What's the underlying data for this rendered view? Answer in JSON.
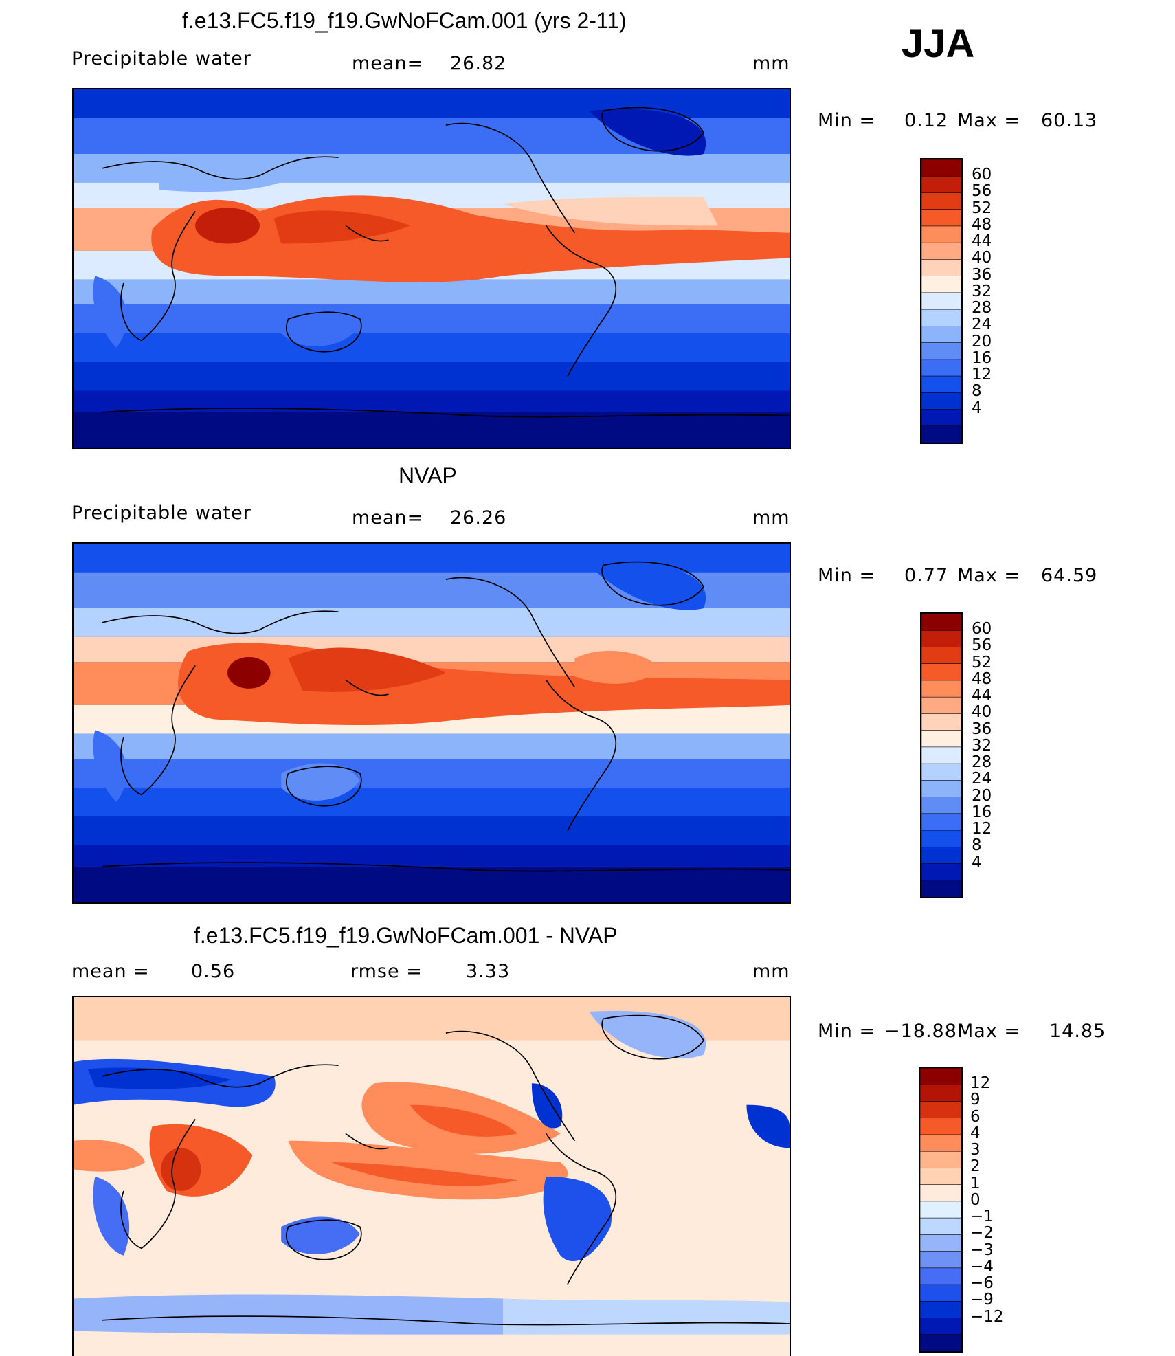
{
  "season": "JJA",
  "colors": {
    "seq": [
      "#000a82",
      "#0019b4",
      "#0032d2",
      "#1450eb",
      "#3c6ef5",
      "#5f8cf5",
      "#8cb4fa",
      "#b4d2ff",
      "#dcebff",
      "#fff0e1",
      "#ffd2b9",
      "#ffaa82",
      "#ff8c5a",
      "#f55a28",
      "#e13c14",
      "#c31e0a",
      "#8c0000"
    ],
    "div": [
      "#000a82",
      "#0019b4",
      "#0032d2",
      "#1e50eb",
      "#466ef5",
      "#6e91f5",
      "#96b4fa",
      "#bed7ff",
      "#e1f0ff",
      "#ffebdc",
      "#ffd2b4",
      "#ffb48c",
      "#ff8c5a",
      "#f55a28",
      "#d7320f",
      "#b41405",
      "#8c0000"
    ],
    "coast": "#000000"
  },
  "panels": [
    {
      "title": "f.e13.FC5.f19_f19.GwNoFCam.001 (yrs 2-11)",
      "variable": "Precipitable water",
      "mean_label": "mean=",
      "mean_value": "26.82",
      "units": "mm",
      "min_label": "Min =",
      "min_value": "0.12",
      "max_label": "Max =",
      "max_value": "60.13",
      "ticks": [
        "60",
        "56",
        "52",
        "48",
        "44",
        "40",
        "36",
        "32",
        "28",
        "24",
        "20",
        "16",
        "12",
        "8",
        "4"
      ]
    },
    {
      "title": "NVAP",
      "variable": "Precipitable water",
      "mean_label": "mean=",
      "mean_value": "26.26",
      "units": "mm",
      "min_label": "Min =",
      "min_value": "0.77",
      "max_label": "Max =",
      "max_value": "64.59",
      "ticks": [
        "60",
        "56",
        "52",
        "48",
        "44",
        "40",
        "36",
        "32",
        "28",
        "24",
        "20",
        "16",
        "12",
        "8",
        "4"
      ]
    },
    {
      "title": "f.e13.FC5.f19_f19.GwNoFCam.001 - NVAP",
      "mean_label": "mean =",
      "mean_value": "0.56",
      "rmse_label": "rmse =",
      "rmse_value": "3.33",
      "units": "mm",
      "min_label": "Min =",
      "min_value": "−18.88",
      "max_label": "Max =",
      "max_value": "14.85",
      "ticks": [
        "12",
        "9",
        "6",
        "4",
        "3",
        "2",
        "1",
        "0",
        "−1",
        "−2",
        "−3",
        "−4",
        "−6",
        "−9",
        "−12"
      ]
    }
  ]
}
